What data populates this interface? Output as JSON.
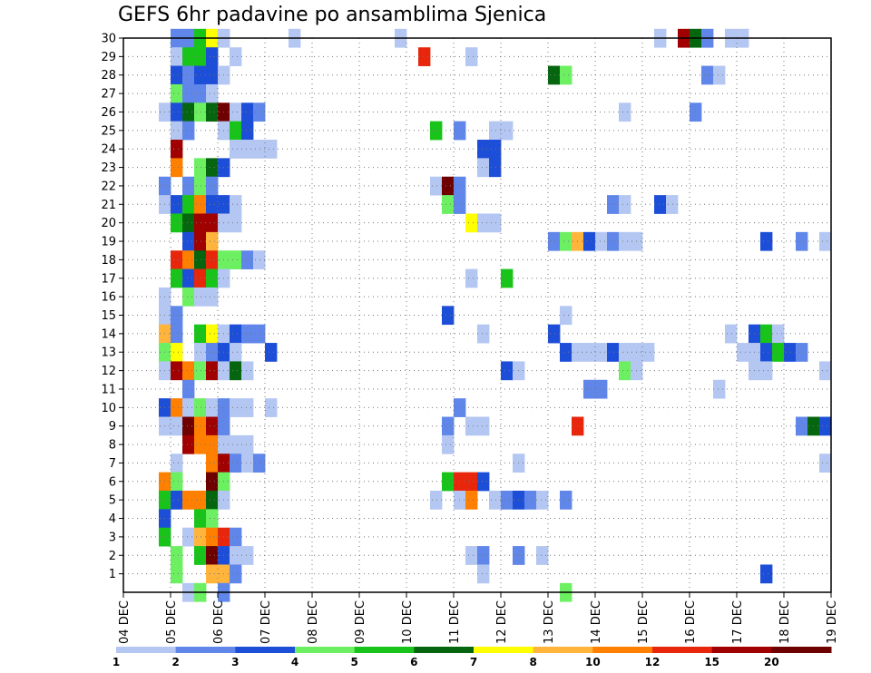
{
  "chart_data": {
    "type": "heatmap",
    "title": "GEFS 6hr padavine po ansamblima Sjenica",
    "xlabel": "",
    "ylabel": "",
    "x_tick_labels": [
      "04 DEC",
      "05 DEC",
      "06 DEC",
      "07 DEC",
      "08 DEC",
      "09 DEC",
      "10 DEC",
      "11 DEC",
      "12 DEC",
      "13 DEC",
      "14 DEC",
      "15 DEC",
      "16 DEC",
      "17 DEC",
      "18 DEC",
      "19 DEC"
    ],
    "x_range_steps": [
      0,
      60
    ],
    "steps_per_day": 4,
    "y_tick_labels": [
      "1",
      "2",
      "3",
      "4",
      "5",
      "6",
      "7",
      "8",
      "9",
      "10",
      "11",
      "12",
      "13",
      "14",
      "15",
      "16",
      "17",
      "18",
      "19",
      "20",
      "21",
      "22",
      "23",
      "24",
      "25",
      "26",
      "27",
      "28",
      "29",
      "30"
    ],
    "y_range": [
      0,
      30
    ],
    "grid": true,
    "legend": {
      "position": "bottom",
      "levels": [
        "1",
        "2",
        "3",
        "4",
        "5",
        "6",
        "7",
        "8",
        "10",
        "12",
        "15",
        "20"
      ],
      "colors": [
        "#b4c6f2",
        "#5f86e8",
        "#1d4ed8",
        "#6cf062",
        "#19c41a",
        "#05660f",
        "#ffff00",
        "#ffb43c",
        "#ff7f00",
        "#e8260c",
        "#a00000",
        "#6e0000"
      ]
    },
    "cells": [
      [
        30,
        4,
        2
      ],
      [
        30,
        5,
        2
      ],
      [
        30,
        6,
        5
      ],
      [
        30,
        7,
        7
      ],
      [
        30,
        8,
        1
      ],
      [
        30,
        14,
        1
      ],
      [
        30,
        23,
        1
      ],
      [
        30,
        45,
        1
      ],
      [
        30,
        47,
        11
      ],
      [
        30,
        48,
        6
      ],
      [
        30,
        49,
        2
      ],
      [
        30,
        51,
        1
      ],
      [
        30,
        52,
        1
      ],
      [
        29,
        4,
        1
      ],
      [
        29,
        5,
        5
      ],
      [
        29,
        6,
        5
      ],
      [
        29,
        7,
        3
      ],
      [
        29,
        9,
        1
      ],
      [
        29,
        25,
        10
      ],
      [
        29,
        29,
        1
      ],
      [
        28,
        4,
        3
      ],
      [
        28,
        5,
        2
      ],
      [
        28,
        6,
        3
      ],
      [
        28,
        7,
        3
      ],
      [
        28,
        8,
        1
      ],
      [
        28,
        36,
        6
      ],
      [
        28,
        37,
        4
      ],
      [
        28,
        49,
        2
      ],
      [
        28,
        50,
        1
      ],
      [
        27,
        4,
        4
      ],
      [
        27,
        5,
        2
      ],
      [
        27,
        6,
        2
      ],
      [
        27,
        7,
        1
      ],
      [
        26,
        3,
        1
      ],
      [
        26,
        4,
        3
      ],
      [
        26,
        5,
        6
      ],
      [
        26,
        6,
        4
      ],
      [
        26,
        7,
        6
      ],
      [
        26,
        8,
        12
      ],
      [
        26,
        9,
        1
      ],
      [
        26,
        10,
        3
      ],
      [
        26,
        11,
        2
      ],
      [
        26,
        42,
        1
      ],
      [
        26,
        48,
        2
      ],
      [
        25,
        4,
        1
      ],
      [
        25,
        5,
        2
      ],
      [
        25,
        8,
        1
      ],
      [
        25,
        9,
        5
      ],
      [
        25,
        10,
        3
      ],
      [
        25,
        26,
        5
      ],
      [
        25,
        28,
        2
      ],
      [
        25,
        31,
        1
      ],
      [
        25,
        32,
        1
      ],
      [
        24,
        4,
        11
      ],
      [
        24,
        9,
        1
      ],
      [
        24,
        10,
        1
      ],
      [
        24,
        11,
        1
      ],
      [
        24,
        12,
        1
      ],
      [
        24,
        30,
        3
      ],
      [
        24,
        31,
        3
      ],
      [
        23,
        4,
        9
      ],
      [
        23,
        6,
        4
      ],
      [
        23,
        7,
        6
      ],
      [
        23,
        8,
        3
      ],
      [
        23,
        30,
        1
      ],
      [
        23,
        31,
        3
      ],
      [
        22,
        3,
        2
      ],
      [
        22,
        5,
        2
      ],
      [
        22,
        6,
        4
      ],
      [
        22,
        7,
        2
      ],
      [
        22,
        26,
        1
      ],
      [
        22,
        27,
        12
      ],
      [
        22,
        28,
        2
      ],
      [
        21,
        3,
        1
      ],
      [
        21,
        4,
        3
      ],
      [
        21,
        5,
        5
      ],
      [
        21,
        6,
        9
      ],
      [
        21,
        7,
        3
      ],
      [
        21,
        8,
        3
      ],
      [
        21,
        9,
        1
      ],
      [
        21,
        27,
        4
      ],
      [
        21,
        28,
        2
      ],
      [
        21,
        41,
        2
      ],
      [
        21,
        42,
        1
      ],
      [
        21,
        45,
        3
      ],
      [
        21,
        46,
        1
      ],
      [
        20,
        4,
        5
      ],
      [
        20,
        5,
        6
      ],
      [
        20,
        6,
        11
      ],
      [
        20,
        7,
        11
      ],
      [
        20,
        8,
        1
      ],
      [
        20,
        9,
        1
      ],
      [
        20,
        29,
        7
      ],
      [
        20,
        30,
        1
      ],
      [
        20,
        31,
        1
      ],
      [
        19,
        5,
        3
      ],
      [
        19,
        6,
        11
      ],
      [
        19,
        7,
        8
      ],
      [
        19,
        36,
        2
      ],
      [
        19,
        37,
        4
      ],
      [
        19,
        38,
        8
      ],
      [
        19,
        39,
        3
      ],
      [
        19,
        40,
        1
      ],
      [
        19,
        41,
        2
      ],
      [
        19,
        42,
        1
      ],
      [
        19,
        43,
        1
      ],
      [
        19,
        54,
        3
      ],
      [
        19,
        57,
        2
      ],
      [
        19,
        59,
        1
      ],
      [
        18,
        4,
        10
      ],
      [
        18,
        5,
        9
      ],
      [
        18,
        6,
        6
      ],
      [
        18,
        7,
        10
      ],
      [
        18,
        8,
        4
      ],
      [
        18,
        9,
        4
      ],
      [
        18,
        10,
        2
      ],
      [
        18,
        11,
        1
      ],
      [
        17,
        4,
        5
      ],
      [
        17,
        5,
        3
      ],
      [
        17,
        6,
        10
      ],
      [
        17,
        7,
        5
      ],
      [
        17,
        8,
        1
      ],
      [
        17,
        29,
        1
      ],
      [
        17,
        32,
        5
      ],
      [
        16,
        3,
        1
      ],
      [
        16,
        5,
        4
      ],
      [
        16,
        6,
        1
      ],
      [
        16,
        7,
        1
      ],
      [
        15,
        3,
        1
      ],
      [
        15,
        4,
        2
      ],
      [
        15,
        27,
        3
      ],
      [
        15,
        37,
        1
      ],
      [
        14,
        3,
        8
      ],
      [
        14,
        4,
        2
      ],
      [
        14,
        6,
        5
      ],
      [
        14,
        7,
        7
      ],
      [
        14,
        8,
        1
      ],
      [
        14,
        9,
        3
      ],
      [
        14,
        10,
        2
      ],
      [
        14,
        11,
        2
      ],
      [
        14,
        30,
        1
      ],
      [
        14,
        36,
        3
      ],
      [
        14,
        51,
        1
      ],
      [
        14,
        53,
        3
      ],
      [
        14,
        54,
        5
      ],
      [
        14,
        55,
        1
      ],
      [
        13,
        3,
        4
      ],
      [
        13,
        4,
        7
      ],
      [
        13,
        6,
        1
      ],
      [
        13,
        7,
        2
      ],
      [
        13,
        8,
        3
      ],
      [
        13,
        9,
        1
      ],
      [
        13,
        12,
        3
      ],
      [
        13,
        37,
        3
      ],
      [
        13,
        38,
        1
      ],
      [
        13,
        39,
        1
      ],
      [
        13,
        40,
        1
      ],
      [
        13,
        41,
        3
      ],
      [
        13,
        42,
        1
      ],
      [
        13,
        43,
        1
      ],
      [
        13,
        44,
        1
      ],
      [
        13,
        52,
        1
      ],
      [
        13,
        53,
        1
      ],
      [
        13,
        54,
        3
      ],
      [
        13,
        55,
        5
      ],
      [
        13,
        56,
        3
      ],
      [
        13,
        57,
        2
      ],
      [
        12,
        3,
        1
      ],
      [
        12,
        4,
        11
      ],
      [
        12,
        5,
        9
      ],
      [
        12,
        6,
        4
      ],
      [
        12,
        7,
        11
      ],
      [
        12,
        8,
        1
      ],
      [
        12,
        9,
        6
      ],
      [
        12,
        10,
        1
      ],
      [
        12,
        32,
        3
      ],
      [
        12,
        33,
        1
      ],
      [
        12,
        42,
        4
      ],
      [
        12,
        43,
        1
      ],
      [
        12,
        53,
        1
      ],
      [
        12,
        54,
        1
      ],
      [
        12,
        59,
        1
      ],
      [
        11,
        5,
        2
      ],
      [
        11,
        39,
        2
      ],
      [
        11,
        40,
        2
      ],
      [
        11,
        50,
        1
      ],
      [
        10,
        3,
        3
      ],
      [
        10,
        4,
        9
      ],
      [
        10,
        5,
        1
      ],
      [
        10,
        6,
        4
      ],
      [
        10,
        7,
        1
      ],
      [
        10,
        8,
        2
      ],
      [
        10,
        9,
        1
      ],
      [
        10,
        10,
        1
      ],
      [
        10,
        12,
        1
      ],
      [
        10,
        28,
        2
      ],
      [
        9,
        3,
        1
      ],
      [
        9,
        4,
        1
      ],
      [
        9,
        5,
        12
      ],
      [
        9,
        6,
        9
      ],
      [
        9,
        7,
        11
      ],
      [
        9,
        8,
        2
      ],
      [
        9,
        27,
        2
      ],
      [
        9,
        29,
        1
      ],
      [
        9,
        30,
        1
      ],
      [
        9,
        38,
        10
      ],
      [
        9,
        57,
        2
      ],
      [
        9,
        58,
        6
      ],
      [
        9,
        59,
        3
      ],
      [
        8,
        5,
        11
      ],
      [
        8,
        6,
        9
      ],
      [
        8,
        7,
        9
      ],
      [
        8,
        8,
        1
      ],
      [
        8,
        9,
        1
      ],
      [
        8,
        10,
        1
      ],
      [
        8,
        27,
        1
      ],
      [
        7,
        4,
        1
      ],
      [
        7,
        7,
        9
      ],
      [
        7,
        8,
        11
      ],
      [
        7,
        9,
        2
      ],
      [
        7,
        10,
        1
      ],
      [
        7,
        11,
        2
      ],
      [
        7,
        33,
        1
      ],
      [
        7,
        59,
        1
      ],
      [
        6,
        3,
        9
      ],
      [
        6,
        4,
        4
      ],
      [
        6,
        7,
        12
      ],
      [
        6,
        8,
        4
      ],
      [
        6,
        27,
        5
      ],
      [
        6,
        28,
        10
      ],
      [
        6,
        29,
        10
      ],
      [
        6,
        30,
        3
      ],
      [
        5,
        3,
        5
      ],
      [
        5,
        4,
        3
      ],
      [
        5,
        5,
        9
      ],
      [
        5,
        6,
        9
      ],
      [
        5,
        7,
        6
      ],
      [
        5,
        8,
        1
      ],
      [
        5,
        26,
        1
      ],
      [
        5,
        28,
        1
      ],
      [
        5,
        29,
        9
      ],
      [
        5,
        31,
        1
      ],
      [
        5,
        32,
        2
      ],
      [
        5,
        33,
        3
      ],
      [
        5,
        34,
        2
      ],
      [
        5,
        35,
        1
      ],
      [
        5,
        37,
        2
      ],
      [
        4,
        3,
        3
      ],
      [
        4,
        6,
        5
      ],
      [
        4,
        7,
        4
      ],
      [
        3,
        3,
        5
      ],
      [
        3,
        5,
        1
      ],
      [
        3,
        6,
        8
      ],
      [
        3,
        7,
        9
      ],
      [
        3,
        8,
        10
      ],
      [
        3,
        9,
        2
      ],
      [
        2,
        4,
        4
      ],
      [
        2,
        6,
        5
      ],
      [
        2,
        7,
        12
      ],
      [
        2,
        8,
        3
      ],
      [
        2,
        9,
        1
      ],
      [
        2,
        10,
        1
      ],
      [
        2,
        29,
        1
      ],
      [
        2,
        30,
        2
      ],
      [
        2,
        33,
        2
      ],
      [
        2,
        35,
        1
      ],
      [
        1,
        4,
        4
      ],
      [
        1,
        7,
        8
      ],
      [
        1,
        8,
        8
      ],
      [
        1,
        9,
        2
      ],
      [
        1,
        30,
        1
      ],
      [
        1,
        54,
        3
      ],
      [
        0,
        5,
        1
      ],
      [
        0,
        6,
        4
      ],
      [
        0,
        8,
        2
      ],
      [
        0,
        37,
        4
      ]
    ]
  }
}
